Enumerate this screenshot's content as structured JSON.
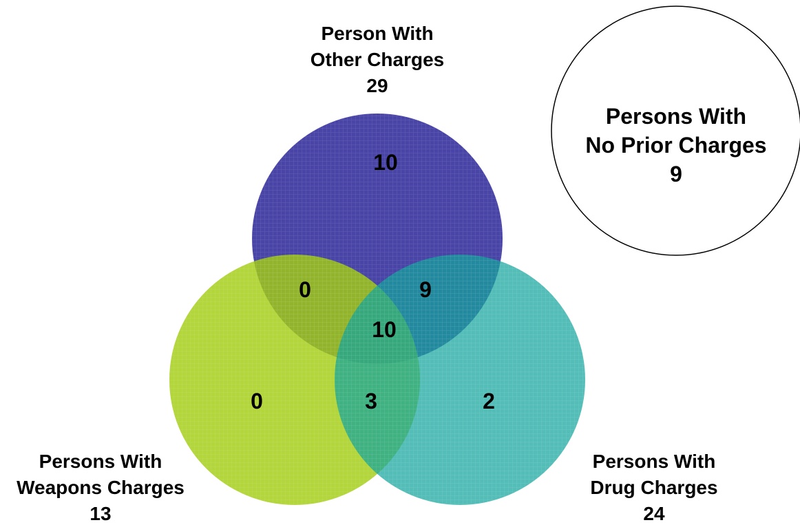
{
  "sets": {
    "other": {
      "title_line1": "Person With",
      "title_line2": "Other Charges",
      "total": "29",
      "color": "#3b37a0"
    },
    "weapons": {
      "title_line1": "Persons With",
      "title_line2": "Weapons Charges",
      "total": "13",
      "color": "#a5cf16"
    },
    "drug": {
      "title_line1": "Persons With",
      "title_line2": "Drug Charges",
      "total": "24",
      "color": "#16a29a"
    },
    "none": {
      "title_line1": "Persons With",
      "title_line2": "No Prior Charges",
      "total": "9"
    }
  },
  "regions": {
    "other_only": "10",
    "weapons_only": "0",
    "drug_only": "2",
    "other_weapons": "0",
    "other_drug": "9",
    "weapons_drug": "3",
    "all_three": "10"
  }
}
